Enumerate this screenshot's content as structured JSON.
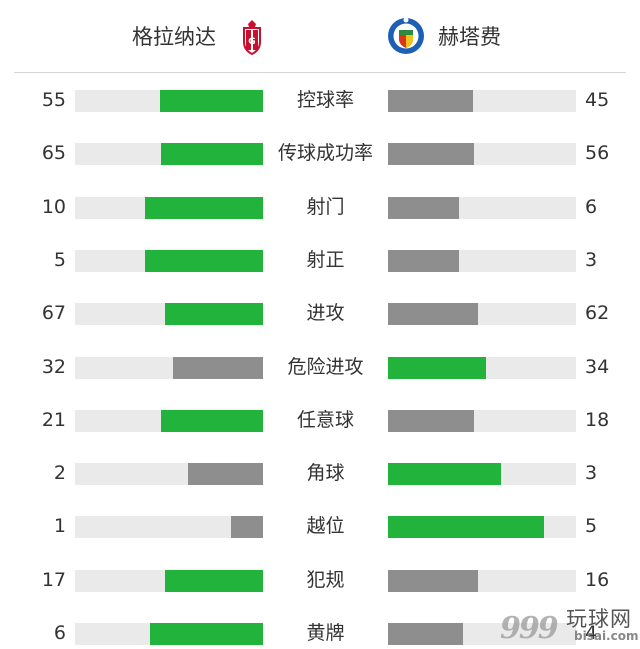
{
  "header": {
    "home_team": "格拉纳达",
    "away_team": "赫塔费",
    "home_logo_icon": "granada-crest-icon",
    "away_logo_icon": "getafe-crest-icon"
  },
  "colors": {
    "leader": "#21b33b",
    "trailer": "#8e8e8e",
    "track": "#eaeaea"
  },
  "stats": [
    {
      "label": "控球率",
      "home": "55",
      "away": "45",
      "home_bar": 0.55,
      "away_bar": 0.45,
      "leader": "home"
    },
    {
      "label": "传球成功率",
      "home": "65",
      "away": "56",
      "home_bar": 0.54,
      "away_bar": 0.46,
      "leader": "home"
    },
    {
      "label": "射门",
      "home": "10",
      "away": "6",
      "home_bar": 0.63,
      "away_bar": 0.38,
      "leader": "home"
    },
    {
      "label": "射正",
      "home": "5",
      "away": "3",
      "home_bar": 0.63,
      "away_bar": 0.38,
      "leader": "home"
    },
    {
      "label": "进攻",
      "home": "67",
      "away": "62",
      "home_bar": 0.52,
      "away_bar": 0.48,
      "leader": "home"
    },
    {
      "label": "危险进攻",
      "home": "32",
      "away": "34",
      "home_bar": 0.48,
      "away_bar": 0.52,
      "leader": "away"
    },
    {
      "label": "任意球",
      "home": "21",
      "away": "18",
      "home_bar": 0.54,
      "away_bar": 0.46,
      "leader": "home"
    },
    {
      "label": "角球",
      "home": "2",
      "away": "3",
      "home_bar": 0.4,
      "away_bar": 0.6,
      "leader": "away"
    },
    {
      "label": "越位",
      "home": "1",
      "away": "5",
      "home_bar": 0.17,
      "away_bar": 0.83,
      "leader": "away"
    },
    {
      "label": "犯规",
      "home": "17",
      "away": "16",
      "home_bar": 0.52,
      "away_bar": 0.48,
      "leader": "home"
    },
    {
      "label": "黄牌",
      "home": "6",
      "away": "4",
      "home_bar": 0.6,
      "away_bar": 0.4,
      "leader": "home"
    }
  ],
  "watermark": {
    "number": "999",
    "cn": "玩球网",
    "en": "bisai.com"
  }
}
